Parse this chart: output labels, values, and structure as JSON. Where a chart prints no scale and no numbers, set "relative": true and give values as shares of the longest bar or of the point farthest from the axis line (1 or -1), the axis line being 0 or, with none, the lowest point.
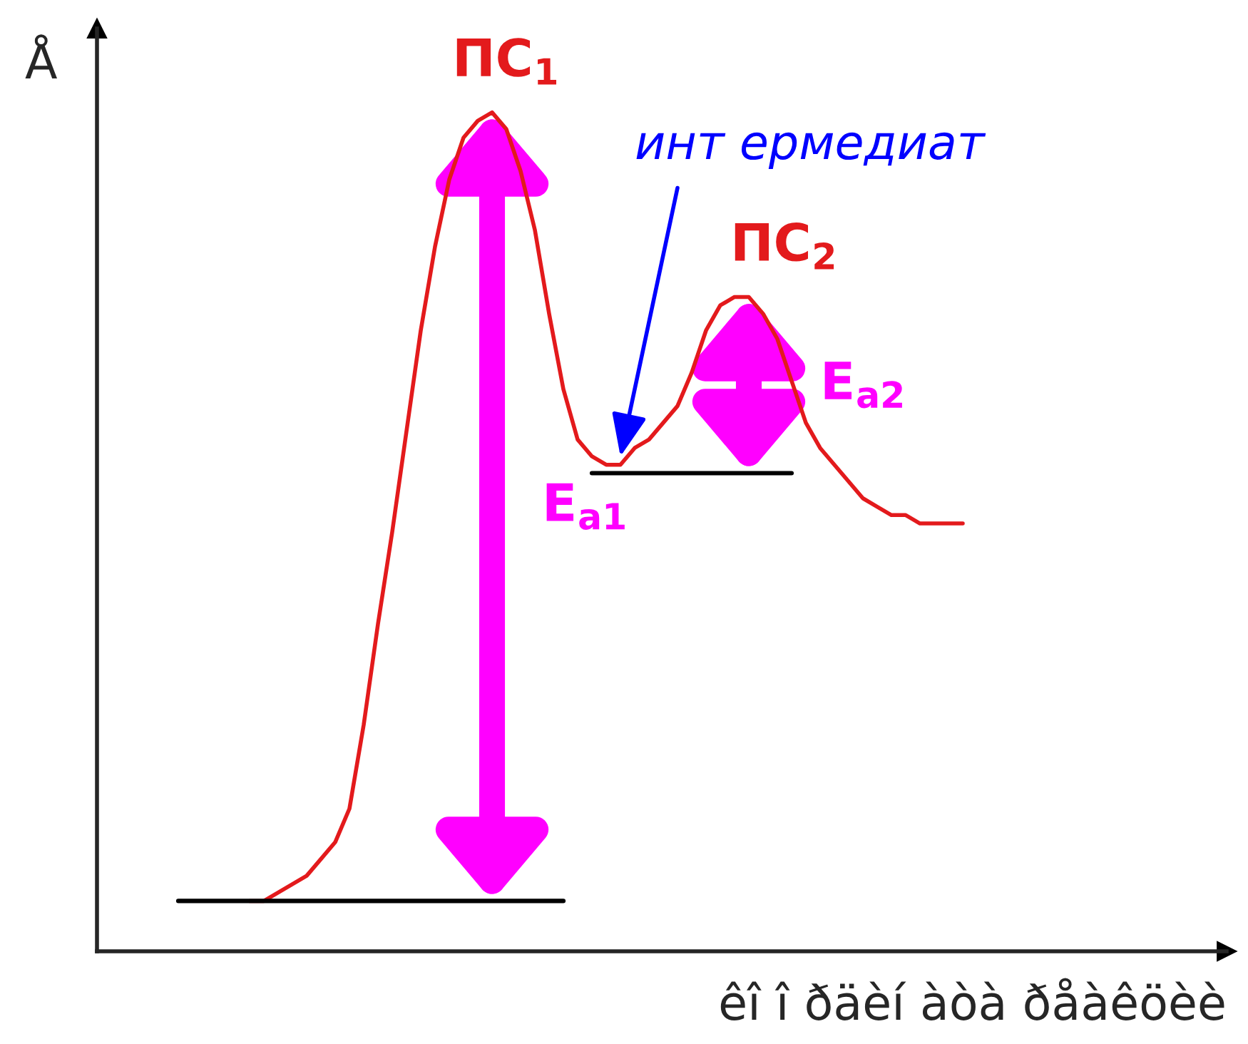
{
  "chart_data": {
    "type": "line",
    "relative": true,
    "xlabel": "êî î ðäèí àòà ðåàêöèè",
    "ylabel": "Å",
    "legend": false,
    "marker": "none",
    "line_style": "solid",
    "categories": [
      null,
      null,
      null,
      null,
      null,
      null,
      null,
      null,
      null,
      null,
      null,
      null,
      null,
      null,
      null,
      null,
      null,
      null,
      null,
      null,
      null,
      null,
      null,
      null,
      null,
      null,
      null,
      null,
      null,
      null,
      null,
      null,
      null,
      null,
      null,
      null,
      null,
      null,
      null,
      null,
      null,
      null,
      null,
      null,
      null,
      null,
      null,
      null,
      null,
      null,
      null,
      null,
      null,
      null,
      null,
      null,
      null,
      null
    ],
    "series": [
      {
        "color": "#e31a1c",
        "values": [
          null,
          null,
          null,
          null,
          null,
          null,
          0.06,
          0.06,
          0.07,
          0.08,
          0.09,
          0.11,
          0.13,
          0.17,
          0.27,
          0.39,
          0.5,
          0.62,
          0.74,
          0.84,
          0.92,
          0.97,
          0.99,
          1,
          0.98,
          0.93,
          0.86,
          0.76,
          0.67,
          0.61,
          0.59,
          0.58,
          0.58,
          0.6,
          0.61,
          0.63,
          0.65,
          0.69,
          0.74,
          0.77,
          0.78,
          0.78,
          0.76,
          0.73,
          0.68,
          0.63,
          0.6,
          0.58,
          0.56,
          0.54,
          0.53,
          0.52,
          0.52,
          0.51,
          0.51,
          0.51,
          0.51,
          null
        ]
      },
      {
        "color": "#000000",
        "values": [
          null,
          0.06,
          0.06,
          0.06,
          0.06,
          0.06,
          0.06,
          0.06,
          0.06,
          0.06,
          0.06,
          0.06,
          0.06,
          0.06,
          0.06,
          0.06,
          0.06,
          0.06,
          0.06,
          0.06,
          0.06,
          0.06,
          0.06,
          0.06,
          0.06,
          0.06,
          0.06,
          0.06,
          0.06,
          null,
          null,
          null,
          null,
          null,
          null,
          null,
          null,
          null,
          null,
          null,
          null,
          null,
          null,
          null,
          null,
          null,
          null,
          null,
          null,
          null,
          null,
          null,
          null,
          null,
          null,
          null,
          null,
          null
        ]
      },
      {
        "color": "#000000",
        "values": [
          null,
          null,
          null,
          null,
          null,
          null,
          null,
          null,
          null,
          null,
          null,
          null,
          null,
          null,
          null,
          null,
          null,
          null,
          null,
          null,
          null,
          null,
          null,
          null,
          null,
          null,
          null,
          null,
          null,
          null,
          0.57,
          0.57,
          0.57,
          0.57,
          0.57,
          0.57,
          0.57,
          0.57,
          0.57,
          0.57,
          0.57,
          0.57,
          0.57,
          0.57,
          0.57,
          null,
          null,
          null,
          null,
          null,
          null,
          null,
          null,
          null,
          null,
          null,
          null,
          null
        ]
      }
    ],
    "annotations": [
      "ПС$_{1}$",
      "ПС$_{2}$",
      "инт ермедиат",
      "E$_{a1}$",
      "E$_{a2}$"
    ]
  }
}
